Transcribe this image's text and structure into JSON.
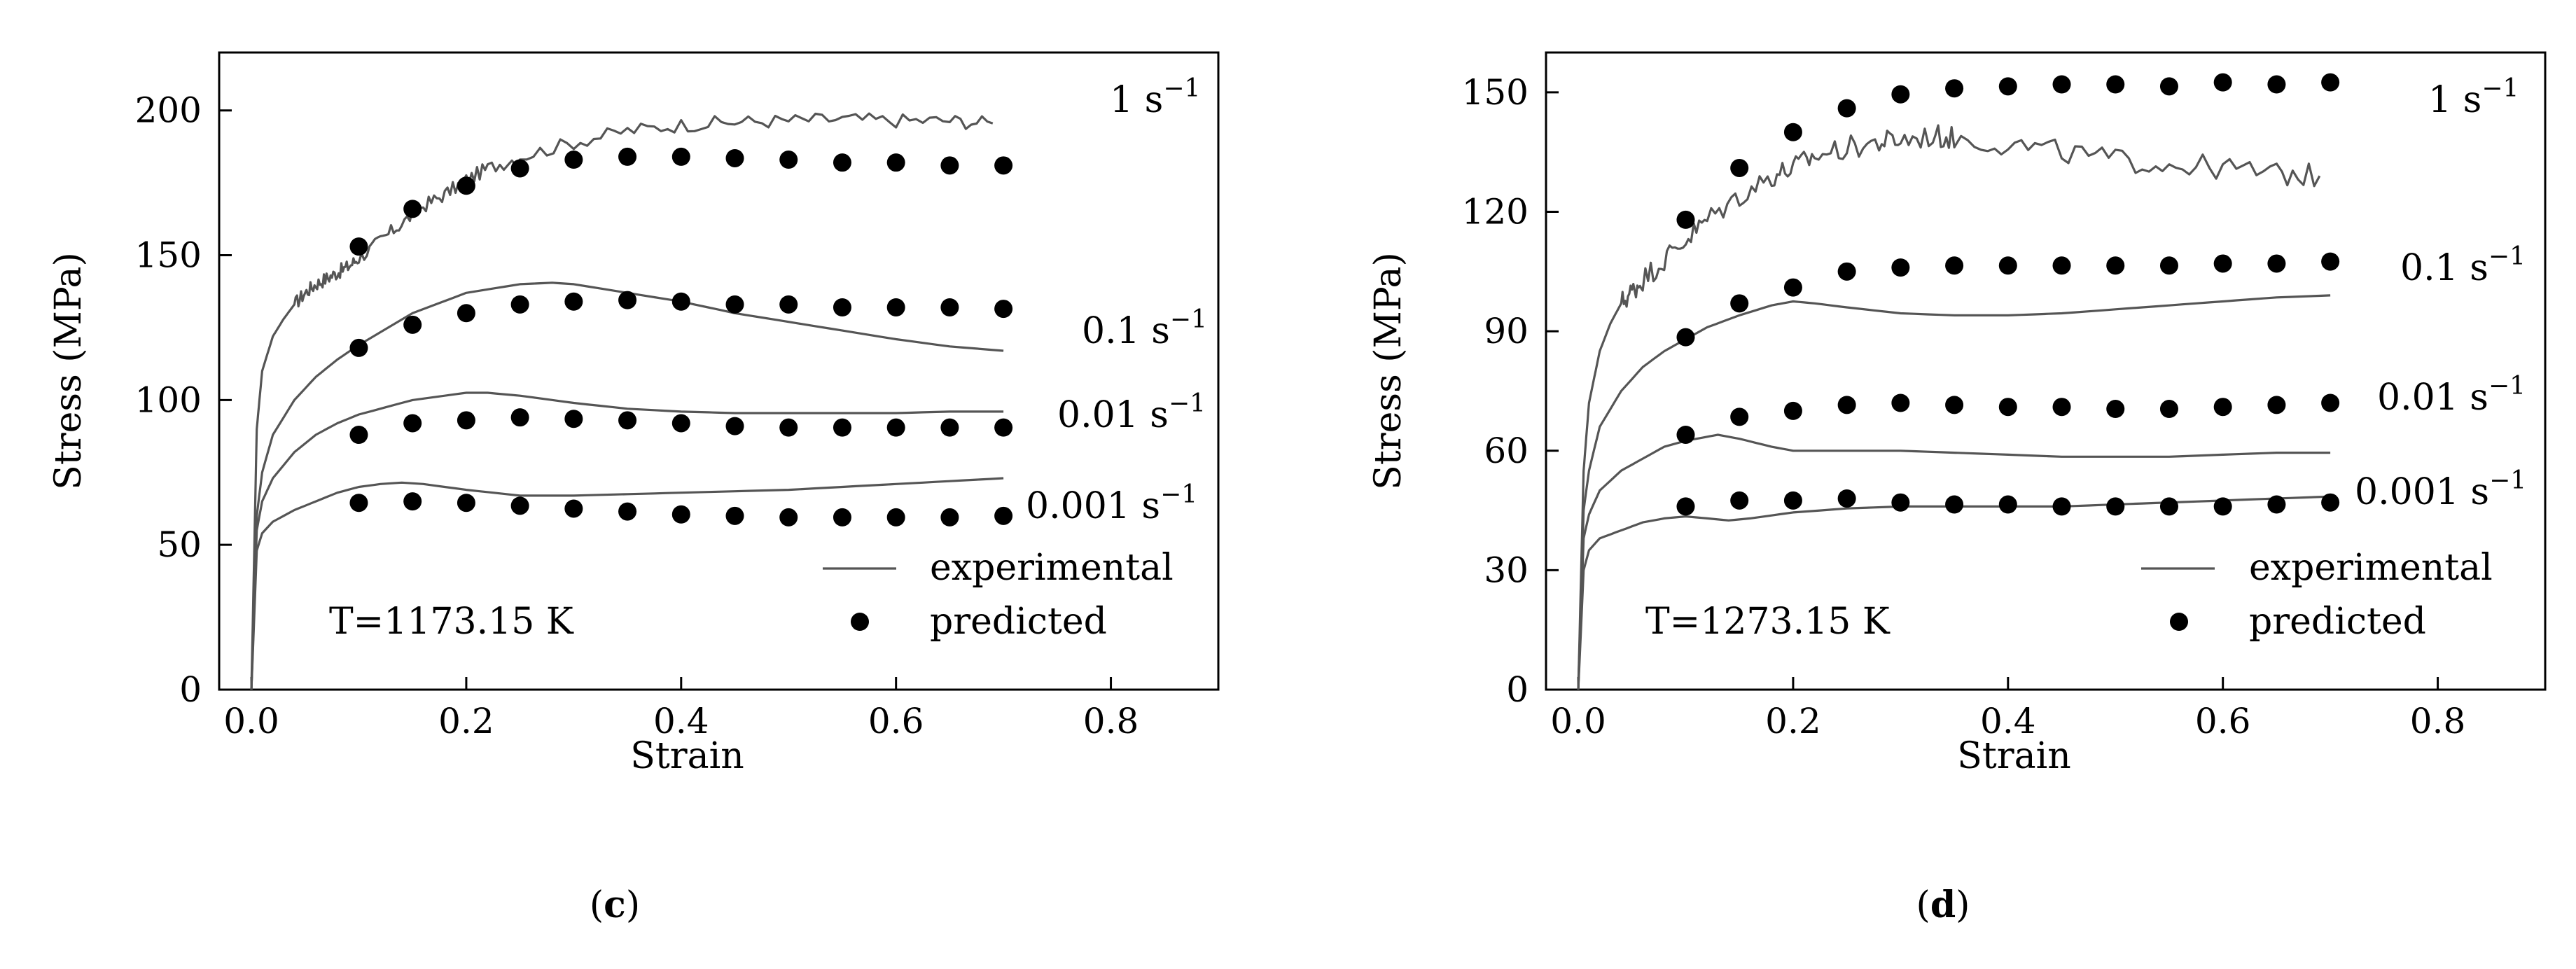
{
  "chart_data": [
    {
      "panel": "c",
      "panel_label": {
        "open": "(",
        "letter": "c",
        "close": ")"
      },
      "type": "line",
      "xlabel": "Strain",
      "ylabel": "Stress (MPa)",
      "xlim": [
        -0.03,
        0.9
      ],
      "ylim": [
        0,
        220
      ],
      "xticks": [
        0.0,
        0.2,
        0.4,
        0.6,
        0.8
      ],
      "xtick_labels": [
        "0.0",
        "0.2",
        "0.4",
        "0.6",
        "0.8"
      ],
      "yticks": [
        0,
        50,
        100,
        150,
        200
      ],
      "ytick_labels": [
        "0",
        "50",
        "100",
        "150",
        "200"
      ],
      "annotation": "T=1173.15 K",
      "legend": {
        "position": "bottom-right",
        "entries": [
          {
            "label": "experimental",
            "kind": "line"
          },
          {
            "label": "predicted",
            "kind": "marker"
          }
        ]
      },
      "series": [
        {
          "name": "1 s-1",
          "label": {
            "base": "1 s",
            "sup": "−1"
          },
          "experimental": {
            "x": [
              0,
              0.005,
              0.01,
              0.02,
              0.03,
              0.04,
              0.05,
              0.06,
              0.07,
              0.08,
              0.09,
              0.1,
              0.12,
              0.14,
              0.16,
              0.18,
              0.2,
              0.22,
              0.25,
              0.3,
              0.35,
              0.4,
              0.45,
              0.5,
              0.55,
              0.6,
              0.65,
              0.69
            ],
            "y": [
              0,
              90,
              110,
              122,
              128,
              133,
              137,
              140,
              142,
              144,
              146,
              149,
              155,
              161,
              167,
              171,
              176,
              180,
              184,
              189,
              193,
              195,
              196,
              196.5,
              197,
              196.5,
              196.5,
              195.5
            ],
            "noise": 2.5
          },
          "predicted": {
            "x": [
              0.1,
              0.15,
              0.2,
              0.25,
              0.3,
              0.35,
              0.4,
              0.45,
              0.5,
              0.55,
              0.6,
              0.65,
              0.7
            ],
            "y": [
              153,
              166,
              174,
              180,
              183,
              184,
              184,
              183.5,
              183,
              182,
              182,
              181,
              181
            ]
          }
        },
        {
          "name": "0.1 s-1",
          "label": {
            "base": "0.1 s",
            "sup": "−1"
          },
          "experimental": {
            "x": [
              0,
              0.005,
              0.01,
              0.02,
              0.04,
              0.06,
              0.08,
              0.1,
              0.15,
              0.2,
              0.25,
              0.28,
              0.3,
              0.35,
              0.4,
              0.45,
              0.5,
              0.55,
              0.6,
              0.65,
              0.7
            ],
            "y": [
              0,
              60,
              75,
              88,
              100,
              108,
              114,
              119,
              130,
              137,
              140,
              140.5,
              140,
              137,
              134,
              130,
              127,
              124,
              121,
              118.5,
              117
            ],
            "noise": 0
          },
          "predicted": {
            "x": [
              0.1,
              0.15,
              0.2,
              0.25,
              0.3,
              0.35,
              0.4,
              0.45,
              0.5,
              0.55,
              0.6,
              0.65,
              0.7
            ],
            "y": [
              118,
              126,
              130,
              133,
              134,
              134.5,
              134,
              133,
              133,
              132,
              132,
              132,
              131.5
            ]
          }
        },
        {
          "name": "0.01 s-1",
          "label": {
            "base": "0.01 s",
            "sup": "−1"
          },
          "experimental": {
            "x": [
              0,
              0.005,
              0.01,
              0.02,
              0.04,
              0.06,
              0.08,
              0.1,
              0.15,
              0.2,
              0.22,
              0.25,
              0.3,
              0.35,
              0.4,
              0.45,
              0.5,
              0.55,
              0.6,
              0.65,
              0.7
            ],
            "y": [
              0,
              55,
              65,
              73,
              82,
              88,
              92,
              95,
              100,
              102.5,
              102.5,
              101.5,
              99,
              97,
              96,
              95.5,
              95.5,
              95.5,
              95.5,
              96,
              96
            ],
            "noise": 0
          },
          "predicted": {
            "x": [
              0.1,
              0.15,
              0.2,
              0.25,
              0.3,
              0.35,
              0.4,
              0.45,
              0.5,
              0.55,
              0.6,
              0.65,
              0.7
            ],
            "y": [
              88,
              92,
              93,
              94,
              93.5,
              93,
              92,
              91,
              90.5,
              90.5,
              90.5,
              90.5,
              90.5
            ]
          }
        },
        {
          "name": "0.001 s-1",
          "label": {
            "base": "0.001 s",
            "sup": "−1"
          },
          "experimental": {
            "x": [
              0,
              0.005,
              0.01,
              0.02,
              0.04,
              0.06,
              0.08,
              0.1,
              0.12,
              0.14,
              0.16,
              0.2,
              0.25,
              0.3,
              0.35,
              0.4,
              0.45,
              0.5,
              0.55,
              0.6,
              0.65,
              0.7
            ],
            "y": [
              0,
              48,
              54,
              58,
              62,
              65,
              68,
              70,
              71,
              71.5,
              71,
              69,
              67,
              67,
              67.5,
              68,
              68.5,
              69,
              70,
              71,
              72,
              73
            ],
            "noise": 0
          },
          "predicted": {
            "x": [
              0.1,
              0.15,
              0.2,
              0.25,
              0.3,
              0.35,
              0.4,
              0.45,
              0.5,
              0.55,
              0.6,
              0.65,
              0.7
            ],
            "y": [
              64.5,
              65,
              64.5,
              63.5,
              62.5,
              61.5,
              60.5,
              60,
              59.5,
              59.5,
              59.5,
              59.5,
              60
            ]
          }
        }
      ]
    },
    {
      "panel": "d",
      "panel_label": {
        "open": "(",
        "letter": "d",
        "close": ")"
      },
      "type": "line",
      "xlabel": "Strain",
      "ylabel": "Stress (MPa)",
      "xlim": [
        -0.03,
        0.9
      ],
      "ylim": [
        0,
        160
      ],
      "xticks": [
        0.0,
        0.2,
        0.4,
        0.6,
        0.8
      ],
      "xtick_labels": [
        "0.0",
        "0.2",
        "0.4",
        "0.6",
        "0.8"
      ],
      "yticks": [
        0,
        30,
        60,
        90,
        120,
        150
      ],
      "ytick_labels": [
        "0",
        "30",
        "60",
        "90",
        "120",
        "150"
      ],
      "annotation": "T=1273.15 K",
      "legend": {
        "position": "bottom-right",
        "entries": [
          {
            "label": "experimental",
            "kind": "line"
          },
          {
            "label": "predicted",
            "kind": "marker"
          }
        ]
      },
      "series": [
        {
          "name": "1 s-1",
          "label": {
            "base": "1 s",
            "sup": "−1"
          },
          "experimental": {
            "x": [
              0,
              0.005,
              0.01,
              0.02,
              0.03,
              0.04,
              0.05,
              0.06,
              0.08,
              0.1,
              0.12,
              0.15,
              0.18,
              0.2,
              0.22,
              0.25,
              0.28,
              0.3,
              0.33,
              0.35,
              0.4,
              0.45,
              0.5,
              0.55,
              0.6,
              0.65,
              0.69
            ],
            "y": [
              0,
              55,
              72,
              85,
              92,
              97,
              100,
              103,
              108,
              113,
              118,
              124,
              129,
              131,
              134,
              136,
              137.5,
              138,
              139,
              138.5,
              137,
              135,
              133,
              132,
              131,
              129.5,
              129
            ],
            "noise": 3
          },
          "predicted": {
            "x": [
              0.1,
              0.15,
              0.2,
              0.25,
              0.3,
              0.35,
              0.4,
              0.45,
              0.5,
              0.55,
              0.6,
              0.65,
              0.7
            ],
            "y": [
              118,
              131,
              140,
              146,
              149.5,
              151,
              151.5,
              152,
              152,
              151.5,
              152.5,
              152,
              152.5
            ]
          }
        },
        {
          "name": "0.1 s-1",
          "label": {
            "base": "0.1 s",
            "sup": "−1"
          },
          "experimental": {
            "x": [
              0,
              0.005,
              0.01,
              0.02,
              0.04,
              0.06,
              0.08,
              0.1,
              0.12,
              0.15,
              0.18,
              0.2,
              0.22,
              0.25,
              0.3,
              0.35,
              0.4,
              0.45,
              0.5,
              0.55,
              0.6,
              0.65,
              0.7
            ],
            "y": [
              0,
              45,
              55,
              66,
              75,
              81,
              85,
              88,
              91,
              94,
              96.5,
              97.5,
              97,
              96,
              94.5,
              94,
              94,
              94.5,
              95.5,
              96.5,
              97.5,
              98.5,
              99
            ],
            "noise": 0
          },
          "predicted": {
            "x": [
              0.1,
              0.15,
              0.2,
              0.25,
              0.3,
              0.35,
              0.4,
              0.45,
              0.5,
              0.55,
              0.6,
              0.65,
              0.7
            ],
            "y": [
              88.5,
              97,
              101,
              105,
              106,
              106.5,
              106.5,
              106.5,
              106.5,
              106.5,
              107,
              107,
              107.5
            ]
          }
        },
        {
          "name": "0.01 s-1",
          "label": {
            "base": "0.01 s",
            "sup": "−1"
          },
          "experimental": {
            "x": [
              0,
              0.005,
              0.01,
              0.02,
              0.04,
              0.06,
              0.08,
              0.1,
              0.12,
              0.13,
              0.15,
              0.18,
              0.2,
              0.25,
              0.3,
              0.35,
              0.4,
              0.45,
              0.5,
              0.55,
              0.6,
              0.65,
              0.7
            ],
            "y": [
              0,
              38,
              44,
              50,
              55,
              58,
              61,
              62.5,
              63.5,
              64,
              63,
              61,
              60,
              60,
              60,
              59.5,
              59,
              58.5,
              58.5,
              58.5,
              59,
              59.5,
              59.5
            ],
            "noise": 0
          },
          "predicted": {
            "x": [
              0.1,
              0.15,
              0.2,
              0.25,
              0.3,
              0.35,
              0.4,
              0.45,
              0.5,
              0.55,
              0.6,
              0.65,
              0.7
            ],
            "y": [
              64,
              68.5,
              70,
              71.5,
              72,
              71.5,
              71,
              71,
              70.5,
              70.5,
              71,
              71.5,
              72
            ]
          }
        },
        {
          "name": "0.001 s-1",
          "label": {
            "base": "0.001 s",
            "sup": "−1"
          },
          "experimental": {
            "x": [
              0,
              0.005,
              0.01,
              0.02,
              0.04,
              0.06,
              0.08,
              0.1,
              0.12,
              0.14,
              0.16,
              0.2,
              0.25,
              0.3,
              0.35,
              0.4,
              0.45,
              0.5,
              0.55,
              0.6,
              0.65,
              0.7
            ],
            "y": [
              0,
              30,
              35,
              38,
              40,
              42,
              43,
              43.5,
              43,
              42.5,
              43,
              44.5,
              45.5,
              46,
              46,
              46,
              46,
              46.5,
              47,
              47.5,
              48,
              48.5
            ],
            "noise": 0
          },
          "predicted": {
            "x": [
              0.1,
              0.15,
              0.2,
              0.25,
              0.3,
              0.35,
              0.4,
              0.45,
              0.5,
              0.55,
              0.6,
              0.65,
              0.7
            ],
            "y": [
              46,
              47.5,
              47.5,
              48,
              47,
              46.5,
              46.5,
              46,
              46,
              46,
              46,
              46.5,
              47
            ]
          }
        }
      ]
    }
  ]
}
